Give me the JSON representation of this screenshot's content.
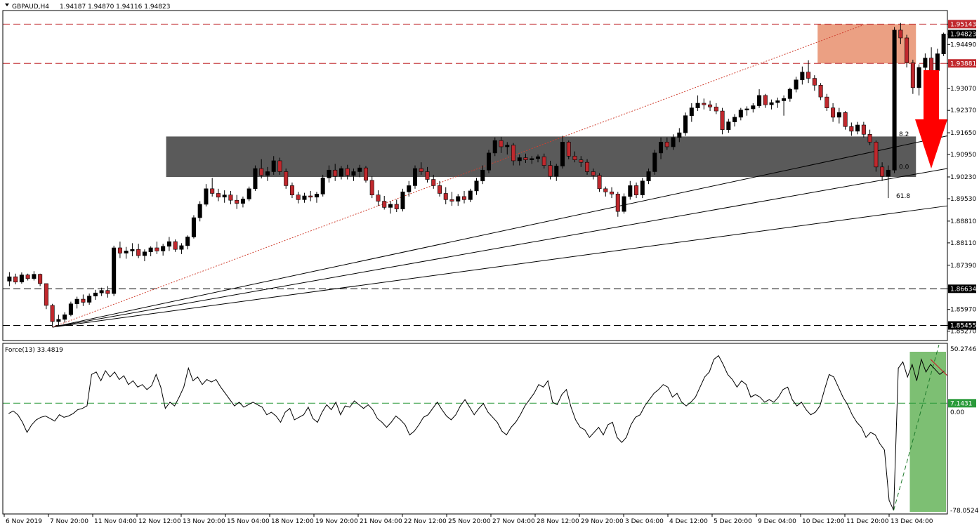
{
  "header": {
    "symbol": "GBPAUD,H4",
    "ohlc": "1.94187 1.94870 1.94116 1.94823",
    "triangle_icon": "dropdown-triangle-icon"
  },
  "force_header": {
    "label": "Force(13) 33.4819"
  },
  "colors": {
    "bull_body": "#000000",
    "bear_body": "#c0282d",
    "resistance_zone": "#eba083",
    "support_zone": "#5a5a5a",
    "force_zone": "#7dbf73",
    "arrow": "#ff0000",
    "dashed_red": "#c0282d",
    "dashed_green": "#2a9a3a",
    "trend_dotted": "#d04030"
  },
  "chart_data": [
    {
      "type": "candlestick",
      "title": "GBPAUD,H4",
      "ylim": [
        1.8497,
        1.9558
      ],
      "y_ticks": [
        "1.95143",
        "1.94823",
        "1.94490",
        "1.93881",
        "1.93070",
        "1.92370",
        "1.91650",
        "1.90950",
        "1.90230",
        "1.89530",
        "1.88810",
        "1.88110",
        "1.87390",
        "1.86634",
        "1.85970",
        "1.85455",
        "1.85270"
      ],
      "highlighted_levels": [
        {
          "label": "1.95143",
          "value": 1.95143,
          "style": "dashed-red"
        },
        {
          "label": "1.94823",
          "value": 1.94823,
          "style": "current-price"
        },
        {
          "label": "1.93881",
          "value": 1.93881,
          "style": "dashed-red"
        },
        {
          "label": "1.86634",
          "value": 1.86634,
          "style": "dashed-black"
        },
        {
          "label": "1.85455",
          "value": 1.85455,
          "style": "dashed-black"
        }
      ],
      "x_ticks": [
        "6 Nov 2019",
        "7 Nov 20:00",
        "11 Nov 04:00",
        "12 Nov 12:00",
        "13 Nov 20:00",
        "15 Nov 04:00",
        "18 Nov 12:00",
        "19 Nov 20:00",
        "21 Nov 04:00",
        "22 Nov 12:00",
        "25 Nov 20:00",
        "27 Nov 04:00",
        "28 Nov 12:00",
        "29 Nov 20:00",
        "3 Dec 04:00",
        "4 Dec 12:00",
        "5 Dec 20:00",
        "9 Dec 04:00",
        "10 Dec 12:00",
        "11 Dec 20:00",
        "13 Dec 04:00"
      ],
      "zones": [
        {
          "name": "resistance",
          "y_from": 1.93881,
          "y_to": 1.95143,
          "x_from_candle": 132,
          "x_to_candle": 147
        },
        {
          "name": "support",
          "y_from": 1.9023,
          "y_to": 1.9153,
          "x_from_candle": 26,
          "x_to_candle": 147
        }
      ],
      "fib_fan_labels": [
        "8.2",
        "0.0",
        "61.8"
      ],
      "candles": [
        [
          1.8688,
          1.8717,
          1.8672,
          1.8702
        ],
        [
          1.8702,
          1.8712,
          1.8678,
          1.8685
        ],
        [
          1.8685,
          1.8716,
          1.868,
          1.8708
        ],
        [
          1.8708,
          1.8712,
          1.869,
          1.8696
        ],
        [
          1.8696,
          1.872,
          1.869,
          1.871
        ],
        [
          1.871,
          1.8712,
          1.8672,
          1.868
        ],
        [
          1.868,
          1.868,
          1.8598,
          1.861
        ],
        [
          1.861,
          1.8615,
          1.854,
          1.8558
        ],
        [
          1.8558,
          1.858,
          1.8545,
          1.8565
        ],
        [
          1.8565,
          1.8588,
          1.8555,
          1.858
        ],
        [
          1.858,
          1.8622,
          1.8575,
          1.8615
        ],
        [
          1.8615,
          1.8638,
          1.86,
          1.863
        ],
        [
          1.863,
          1.8645,
          1.8608,
          1.862
        ],
        [
          1.862,
          1.8648,
          1.8612,
          1.864
        ],
        [
          1.864,
          1.866,
          1.8628,
          1.865
        ],
        [
          1.865,
          1.8667,
          1.864,
          1.8658
        ],
        [
          1.8658,
          1.8672,
          1.8635,
          1.8648
        ],
        [
          1.8648,
          1.8802,
          1.864,
          1.8795
        ],
        [
          1.8795,
          1.8815,
          1.8762,
          1.8778
        ],
        [
          1.8778,
          1.8798,
          1.876,
          1.8785
        ],
        [
          1.8785,
          1.881,
          1.8768,
          1.879
        ],
        [
          1.879,
          1.8808,
          1.8762,
          1.877
        ],
        [
          1.877,
          1.879,
          1.8752,
          1.8782
        ],
        [
          1.8782,
          1.88,
          1.8768,
          1.8795
        ],
        [
          1.8795,
          1.8815,
          1.8775,
          1.8785
        ],
        [
          1.8785,
          1.8808,
          1.877,
          1.88
        ],
        [
          1.88,
          1.883,
          1.8785,
          1.8815
        ],
        [
          1.8815,
          1.8822,
          1.8782,
          1.879
        ],
        [
          1.879,
          1.881,
          1.8775,
          1.8802
        ],
        [
          1.8802,
          1.8835,
          1.879,
          1.883
        ],
        [
          1.883,
          1.89,
          1.8825,
          1.8892
        ],
        [
          1.8892,
          1.8945,
          1.888,
          1.8935
        ],
        [
          1.8935,
          1.9,
          1.8928,
          1.8985
        ],
        [
          1.8985,
          1.902,
          1.896,
          1.897
        ],
        [
          1.897,
          1.8985,
          1.8945,
          1.8958
        ],
        [
          1.8958,
          1.898,
          1.894,
          1.8965
        ],
        [
          1.8965,
          1.8978,
          1.8935,
          1.8948
        ],
        [
          1.8948,
          1.8965,
          1.892,
          1.8938
        ],
        [
          1.8938,
          1.896,
          1.8925,
          1.8952
        ],
        [
          1.8952,
          1.8992,
          1.8945,
          1.8985
        ],
        [
          1.8985,
          1.906,
          1.8978,
          1.905
        ],
        [
          1.905,
          1.908,
          1.9018,
          1.9028
        ],
        [
          1.9028,
          1.9055,
          1.901,
          1.904
        ],
        [
          1.904,
          1.909,
          1.903,
          1.9075
        ],
        [
          1.9075,
          1.9085,
          1.903,
          1.904
        ],
        [
          1.904,
          1.905,
          1.8985,
          1.8995
        ],
        [
          1.8995,
          1.9005,
          1.8955,
          1.8965
        ],
        [
          1.8965,
          1.8975,
          1.8938,
          1.895
        ],
        [
          1.895,
          1.8972,
          1.894,
          1.8962
        ],
        [
          1.8962,
          1.8978,
          1.8945,
          1.8958
        ],
        [
          1.8958,
          1.8975,
          1.894,
          1.8968
        ],
        [
          1.8968,
          1.903,
          1.896,
          1.902
        ],
        [
          1.902,
          1.906,
          1.9005,
          1.9045
        ],
        [
          1.9045,
          1.9065,
          1.901,
          1.9025
        ],
        [
          1.9025,
          1.9058,
          1.9015,
          1.905
        ],
        [
          1.905,
          1.9062,
          1.9015,
          1.9028
        ],
        [
          1.9028,
          1.905,
          1.901,
          1.904
        ],
        [
          1.904,
          1.9062,
          1.9022,
          1.9052
        ],
        [
          1.9052,
          1.9058,
          1.9005,
          1.9012
        ],
        [
          1.9012,
          1.9025,
          1.8955,
          1.8965
        ],
        [
          1.8965,
          1.898,
          1.893,
          1.8945
        ],
        [
          1.8945,
          1.8962,
          1.8918,
          1.8925
        ],
        [
          1.8925,
          1.8945,
          1.8905,
          1.8935
        ],
        [
          1.8935,
          1.895,
          1.891,
          1.892
        ],
        [
          1.892,
          1.8985,
          1.8912,
          1.8975
        ],
        [
          1.8975,
          1.901,
          1.896,
          1.8995
        ],
        [
          1.8995,
          1.906,
          1.8985,
          1.905
        ],
        [
          1.905,
          1.907,
          1.903,
          1.904
        ],
        [
          1.904,
          1.9055,
          1.9005,
          1.9015
        ],
        [
          1.9015,
          1.903,
          1.8985,
          1.8995
        ],
        [
          1.8995,
          1.901,
          1.896,
          1.897
        ],
        [
          1.897,
          1.899,
          1.8935,
          1.895
        ],
        [
          1.895,
          1.8975,
          1.893,
          1.8945
        ],
        [
          1.8945,
          1.8968,
          1.893,
          1.896
        ],
        [
          1.896,
          1.8978,
          1.8938,
          1.895
        ],
        [
          1.895,
          1.8985,
          1.8942,
          1.8978
        ],
        [
          1.8978,
          1.902,
          1.8965,
          1.901
        ],
        [
          1.901,
          1.906,
          1.9,
          1.9045
        ],
        [
          1.9045,
          1.911,
          1.9035,
          1.91
        ],
        [
          1.91,
          1.915,
          1.909,
          1.914
        ],
        [
          1.914,
          1.9152,
          1.91,
          1.912
        ],
        [
          1.912,
          1.9135,
          1.9095,
          1.9125
        ],
        [
          1.9125,
          1.9132,
          1.906,
          1.9075
        ],
        [
          1.9075,
          1.9095,
          1.906,
          1.9085
        ],
        [
          1.9085,
          1.9098,
          1.9068,
          1.9078
        ],
        [
          1.9078,
          1.909,
          1.9065,
          1.9082
        ],
        [
          1.9082,
          1.9095,
          1.907,
          1.9088
        ],
        [
          1.9088,
          1.9098,
          1.905,
          1.906
        ],
        [
          1.906,
          1.9075,
          1.9015,
          1.9025
        ],
        [
          1.9025,
          1.9065,
          1.901,
          1.9058
        ],
        [
          1.9058,
          1.9155,
          1.905,
          1.9135
        ],
        [
          1.9135,
          1.914,
          1.908,
          1.909
        ],
        [
          1.909,
          1.9105,
          1.907,
          1.9078
        ],
        [
          1.9078,
          1.909,
          1.9055,
          1.907
        ],
        [
          1.907,
          1.908,
          1.903,
          1.904
        ],
        [
          1.904,
          1.905,
          1.9015,
          1.9028
        ],
        [
          1.9028,
          1.9035,
          1.8975,
          1.8985
        ],
        [
          1.8985,
          1.8992,
          1.896,
          1.8975
        ],
        [
          1.8975,
          1.899,
          1.8955,
          1.8968
        ],
        [
          1.8968,
          1.8975,
          1.8895,
          1.8912
        ],
        [
          1.8912,
          1.897,
          1.8905,
          1.896
        ],
        [
          1.896,
          1.901,
          1.895,
          1.8995
        ],
        [
          1.8995,
          1.9005,
          1.8955,
          1.8965
        ],
        [
          1.8965,
          1.902,
          1.8955,
          1.901
        ],
        [
          1.901,
          1.905,
          1.9,
          1.904
        ],
        [
          1.904,
          1.911,
          1.903,
          1.91
        ],
        [
          1.91,
          1.915,
          1.908,
          1.9135
        ],
        [
          1.9135,
          1.915,
          1.911,
          1.912
        ],
        [
          1.912,
          1.916,
          1.911,
          1.915
        ],
        [
          1.915,
          1.918,
          1.9135,
          1.9165
        ],
        [
          1.9165,
          1.923,
          1.9155,
          1.922
        ],
        [
          1.922,
          1.926,
          1.92,
          1.9245
        ],
        [
          1.9245,
          1.9285,
          1.9235,
          1.926
        ],
        [
          1.926,
          1.9275,
          1.924,
          1.9255
        ],
        [
          1.9255,
          1.9268,
          1.9235,
          1.9248
        ],
        [
          1.9248,
          1.926,
          1.9225,
          1.9235
        ],
        [
          1.9235,
          1.9245,
          1.916,
          1.9175
        ],
        [
          1.9175,
          1.921,
          1.9165,
          1.92
        ],
        [
          1.92,
          1.9225,
          1.9185,
          1.9215
        ],
        [
          1.9215,
          1.9245,
          1.9205,
          1.9238
        ],
        [
          1.9238,
          1.925,
          1.922,
          1.9242
        ],
        [
          1.9242,
          1.926,
          1.923,
          1.9252
        ],
        [
          1.9252,
          1.9305,
          1.9245,
          1.9285
        ],
        [
          1.9285,
          1.929,
          1.9245,
          1.9255
        ],
        [
          1.9255,
          1.9272,
          1.924,
          1.9262
        ],
        [
          1.9262,
          1.9278,
          1.9245,
          1.9268
        ],
        [
          1.9268,
          1.9285,
          1.922,
          1.9275
        ],
        [
          1.9275,
          1.931,
          1.9265,
          1.9305
        ],
        [
          1.9305,
          1.9345,
          1.9295,
          1.9335
        ],
        [
          1.9335,
          1.9378,
          1.932,
          1.936
        ],
        [
          1.936,
          1.9398,
          1.9325,
          1.934
        ],
        [
          1.934,
          1.935,
          1.93,
          1.9318
        ],
        [
          1.9318,
          1.9325,
          1.927,
          1.928
        ],
        [
          1.928,
          1.929,
          1.9235,
          1.9245
        ],
        [
          1.9245,
          1.926,
          1.92,
          1.9215
        ],
        [
          1.9215,
          1.9245,
          1.9195,
          1.923
        ],
        [
          1.923,
          1.9235,
          1.9175,
          1.9185
        ],
        [
          1.9185,
          1.9198,
          1.9155,
          1.917
        ],
        [
          1.917,
          1.92,
          1.916,
          1.919
        ],
        [
          1.919,
          1.92,
          1.915,
          1.916
        ],
        [
          1.916,
          1.9175,
          1.9125,
          1.9135
        ],
        [
          1.9135,
          1.914,
          1.904,
          1.9055
        ],
        [
          1.9055,
          1.907,
          1.901,
          1.9025
        ],
        [
          1.9025,
          1.906,
          1.8955,
          1.9045
        ],
        [
          1.9045,
          1.9505,
          1.9035,
          1.9495
        ],
        [
          1.9495,
          1.9518,
          1.945,
          1.947
        ],
        [
          1.947,
          1.948,
          1.9375,
          1.939
        ],
        [
          1.939,
          1.94,
          1.929,
          1.931
        ],
        [
          1.931,
          1.9385,
          1.9285,
          1.9375
        ],
        [
          1.9375,
          1.942,
          1.9345,
          1.9405
        ],
        [
          1.9405,
          1.944,
          1.9355,
          1.9365
        ],
        [
          1.9365,
          1.9435,
          1.9355,
          1.9419
        ],
        [
          1.94187,
          1.9487,
          1.94116,
          1.94823
        ]
      ]
    },
    {
      "type": "line",
      "title": "Force(13) 33.4819",
      "ylim": [
        -78.0524,
        50.2746
      ],
      "y_ticks": [
        "50.2746",
        "7.1431",
        "0.00",
        "-78.0524"
      ],
      "reference_level": 7.1431,
      "values": [
        -1,
        1,
        -2,
        -8,
        -16,
        -10,
        -6,
        -4,
        -3,
        -5,
        -7,
        -2,
        -4,
        -3,
        -1,
        2,
        3,
        5,
        30,
        32,
        25,
        33,
        28,
        32,
        26,
        29,
        22,
        25,
        20,
        22,
        18,
        21,
        30,
        20,
        3,
        8,
        5,
        12,
        20,
        35,
        25,
        28,
        22,
        26,
        24,
        26,
        20,
        15,
        10,
        5,
        8,
        4,
        6,
        8,
        6,
        4,
        -2,
        0,
        -3,
        -8,
        0,
        3,
        -6,
        -4,
        -2,
        4,
        -5,
        -8,
        0,
        6,
        2,
        8,
        -2,
        5,
        4,
        9,
        6,
        3,
        6,
        2,
        -5,
        -8,
        -12,
        -8,
        -3,
        -6,
        -10,
        -18,
        -15,
        -10,
        -4,
        -2,
        3,
        8,
        2,
        -3,
        -6,
        -2,
        5,
        10,
        4,
        -2,
        3,
        7,
        0,
        -4,
        -8,
        -15,
        -18,
        -12,
        -8,
        -2,
        5,
        10,
        15,
        22,
        20,
        25,
        8,
        6,
        14,
        18,
        4,
        -6,
        -12,
        -14,
        -20,
        -16,
        -12,
        -18,
        -10,
        -8,
        -20,
        -24,
        -20,
        -10,
        -4,
        -2,
        5,
        10,
        15,
        18,
        22,
        20,
        12,
        15,
        8,
        5,
        8,
        12,
        20,
        28,
        32,
        42,
        45,
        38,
        30,
        26,
        20,
        25,
        22,
        12,
        14,
        12,
        8,
        10,
        8,
        12,
        18,
        20,
        10,
        5,
        8,
        2,
        -2,
        0,
        5,
        18,
        30,
        28,
        20,
        12,
        6,
        -2,
        -8,
        -12,
        -20,
        -16,
        -18,
        -25,
        -30,
        -70,
        -78,
        35,
        40,
        28,
        38,
        25,
        42,
        32,
        38,
        34,
        30,
        33
      ]
    }
  ]
}
